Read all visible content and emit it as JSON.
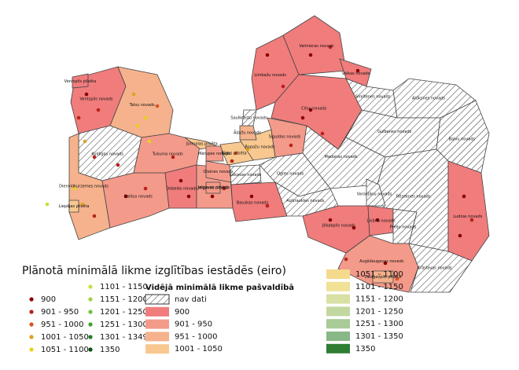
{
  "map": {
    "regions": [
      {
        "label": "Ventspils novads",
        "class": "900"
      },
      {
        "label": "Talsu novads",
        "class": "951 - 1000"
      },
      {
        "label": "Kuldīgas novads",
        "class": "nav dati"
      },
      {
        "label": "Dienvidkurzemes novads",
        "class": "951 - 1000"
      },
      {
        "label": "Saldus novads",
        "class": "901 - 950"
      },
      {
        "label": "Tukuma novads",
        "class": "901 - 950"
      },
      {
        "label": "Dobeles novads",
        "class": "900"
      },
      {
        "label": "Jelgavas novads",
        "class": "901 - 950"
      },
      {
        "label": "Bauskas novads",
        "class": "900"
      },
      {
        "label": "Jūrmalas pilsēta",
        "class": "1001 - 1050"
      },
      {
        "label": "Mārupes novads",
        "class": "901 - 950"
      },
      {
        "label": "Rīgas pilsēta",
        "class": "1001 - 1050"
      },
      {
        "label": "Olaines novads",
        "class": "901 - 950"
      },
      {
        "label": "Ķekavas novads",
        "class": "nav dati"
      },
      {
        "label": "Ropažu novads",
        "class": "1001 - 1050"
      },
      {
        "label": "Ādažu novads",
        "class": "951 - 1000"
      },
      {
        "label": "Saulkrastu novads",
        "class": "nav dati"
      },
      {
        "label": "Siguldas novads",
        "class": "901 - 950"
      },
      {
        "label": "Limbažu novads",
        "class": "900"
      },
      {
        "label": "Valmieras novads",
        "class": "900"
      },
      {
        "label": "Valkas novads",
        "class": "900"
      },
      {
        "label": "Cēsu novads",
        "class": "900"
      },
      {
        "label": "Smiltenes novads",
        "class": "nav dati"
      },
      {
        "label": "Alūksnes novads",
        "class": "nav dati"
      },
      {
        "label": "Gulbenes novads",
        "class": "nav dati"
      },
      {
        "label": "Balvu novads",
        "class": "nav dati"
      },
      {
        "label": "Madonas novads",
        "class": "nav dati"
      },
      {
        "label": "Ogres novads",
        "class": "nav dati"
      },
      {
        "label": "Aizkraukles novads",
        "class": "nav dati"
      },
      {
        "label": "Rēzeknes novads",
        "class": "nav dati"
      },
      {
        "label": "Varakļānu novads",
        "class": "nav dati"
      },
      {
        "label": "Ludzas novads",
        "class": "900"
      },
      {
        "label": "Jēkabpils novads",
        "class": "900"
      },
      {
        "label": "Līvānu novads",
        "class": "900"
      },
      {
        "label": "Preiļu novads",
        "class": "nav dati"
      },
      {
        "label": "Augšdaugavas novads",
        "class": "901 - 950"
      },
      {
        "label": "Krāslavas novads",
        "class": "nav dati"
      },
      {
        "label": "Daugavpils pilsēta",
        "class": "951 - 1000"
      },
      {
        "label": "Liepājas pilsēta",
        "class": "1001 - 1050"
      },
      {
        "label": "Ventspils pilsēta",
        "class": "900"
      },
      {
        "label": "Jelgavas pilsēta",
        "class": "901 - 950"
      }
    ],
    "legend": {
      "title": "Plānotā minimālā likme izglītības iestādēs (eiro)",
      "points": [
        {
          "label": "900",
          "color": "#8b0000"
        },
        {
          "label": "901 - 950",
          "color": "#b8221c"
        },
        {
          "label": "951 - 1000",
          "color": "#d9531e"
        },
        {
          "label": "1001 - 1050",
          "color": "#e0a21c"
        },
        {
          "label": "1051 - 1100",
          "color": "#e8d11e"
        },
        {
          "label": "1101 - 1150",
          "color": "#c6de3c"
        },
        {
          "label": "1151 - 1200",
          "color": "#9fd03e"
        },
        {
          "label": "1201 - 1250",
          "color": "#6fbf3a"
        },
        {
          "label": "1251 - 1300",
          "color": "#3ea12e"
        },
        {
          "label": "1301 - 1349",
          "color": "#1f7f1f"
        },
        {
          "label": "1350",
          "color": "#0b4f10"
        }
      ],
      "area_title": "Vidējā minimālā likme pašvaldībā",
      "areas": [
        {
          "label": "nav dati",
          "color": "hatch"
        },
        {
          "label": "900",
          "color": "#f07c7c"
        },
        {
          "label": "901 - 950",
          "color": "#f49a8a"
        },
        {
          "label": "951 - 1000",
          "color": "#f5b28c"
        },
        {
          "label": "1001 - 1050",
          "color": "#f8c890"
        },
        {
          "label": "1051 - 1100",
          "color": "#f5d98c"
        },
        {
          "label": "1101 - 1150",
          "color": "#f0e196"
        },
        {
          "label": "1151 - 1200",
          "color": "#d9e0a4"
        },
        {
          "label": "1201 - 1250",
          "color": "#c2d8a0"
        },
        {
          "label": "1251 - 1300",
          "color": "#a8cb98"
        },
        {
          "label": "1301 - 1350",
          "color": "#88b888"
        },
        {
          "label": "1350",
          "color": "#2e7d32"
        }
      ]
    }
  }
}
